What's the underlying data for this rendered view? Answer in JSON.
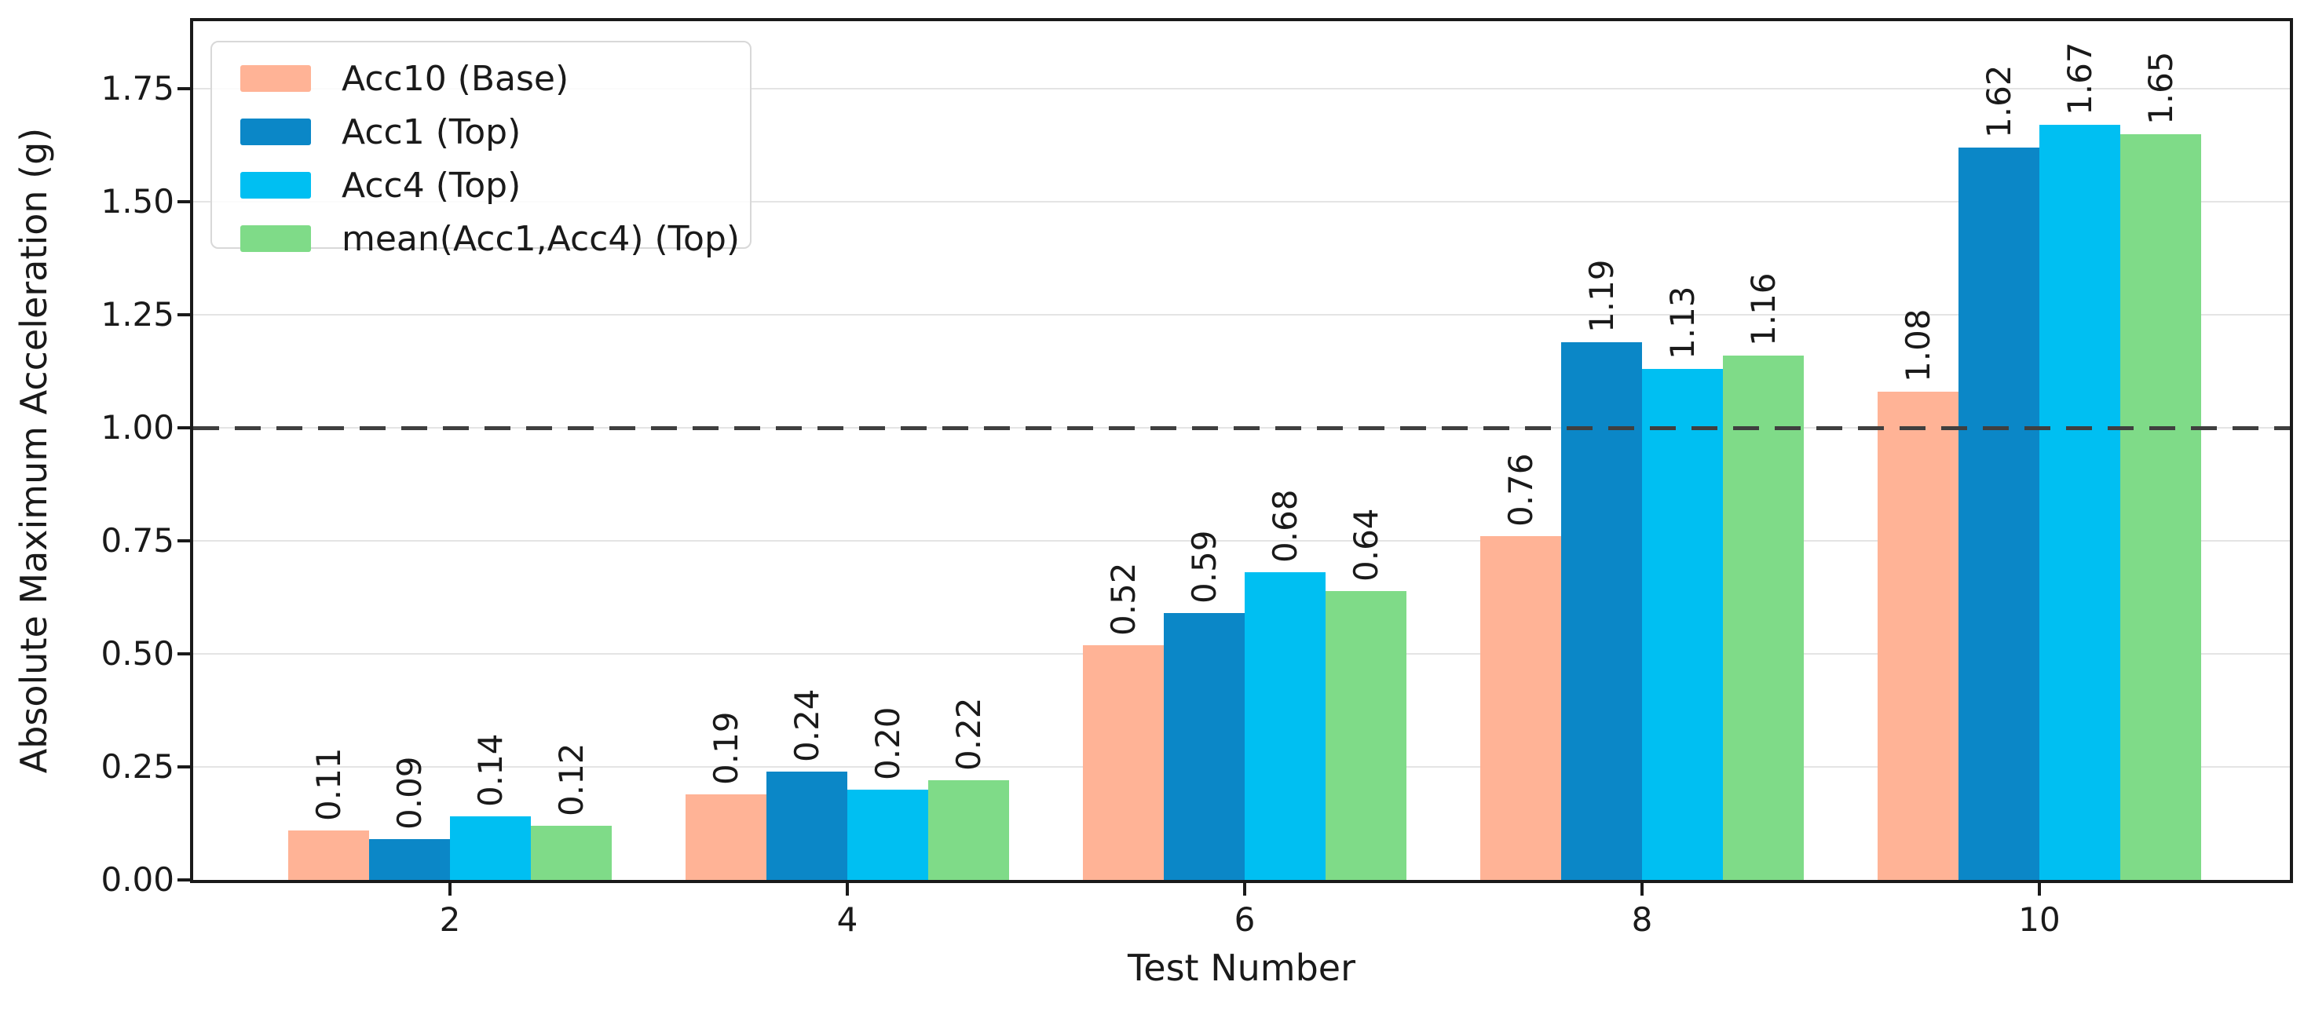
{
  "chart_data": {
    "type": "bar",
    "title": "",
    "xlabel": "Test Number",
    "ylabel": "Absolute Maximum Acceleration (g)",
    "categories": [
      "2",
      "4",
      "6",
      "8",
      "10"
    ],
    "series": [
      {
        "name": "Acc10 (Base)",
        "color": "#FFB396",
        "values": [
          0.11,
          0.19,
          0.52,
          0.76,
          1.08
        ]
      },
      {
        "name": "Acc1 (Top)",
        "color": "#0B87C7",
        "values": [
          0.09,
          0.24,
          0.59,
          1.19,
          1.62
        ]
      },
      {
        "name": "Acc4 (Top)",
        "color": "#00BFF2",
        "values": [
          0.14,
          0.2,
          0.68,
          1.13,
          1.67
        ]
      },
      {
        "name": "mean(Acc1,Acc4) (Top)",
        "color": "#7FDB88",
        "values": [
          0.12,
          0.22,
          0.64,
          1.16,
          1.65
        ]
      }
    ],
    "ytick_values": [
      0,
      0.25,
      0.5,
      0.75,
      1.0,
      1.25,
      1.5,
      1.75
    ],
    "ytick_labels": [
      "0.00",
      "0.25",
      "0.50",
      "0.75",
      "1.00",
      "1.25",
      "1.50",
      "1.75"
    ],
    "ylim": [
      0,
      1.9
    ],
    "grid": true,
    "legend_position": "upper left",
    "reference_line": {
      "y": 1.0,
      "style": "dashed",
      "color": "#3F3F3F"
    },
    "bar_label_decimals": 2,
    "bar_label_rotation_deg": 90,
    "colors": {
      "spine": "#1a1a1a",
      "grid": "#e4e4e4",
      "text": "#1a1a1a",
      "legend_border": "#d8d8d8"
    }
  }
}
